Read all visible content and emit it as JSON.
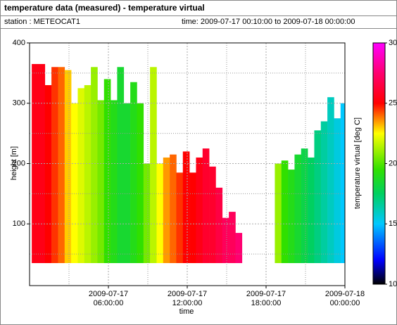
{
  "header": {
    "title": "temperature data (measured) - temperature virtual",
    "station": "station : METEOCAT1",
    "time": "time: 2009-07-17 00:10:00 to 2009-07-18 00:00:00"
  },
  "chart_data": {
    "type": "heatmap",
    "xlabel": "time",
    "ylabel": "height [m]",
    "colorbar_label": "temperature virtual [deg C]",
    "x": [
      "2009-07-17 00:10:00",
      "2009-07-17 00:40:00",
      "2009-07-17 01:10:00",
      "2009-07-17 01:40:00",
      "2009-07-17 02:10:00",
      "2009-07-17 02:40:00",
      "2009-07-17 03:10:00",
      "2009-07-17 03:40:00",
      "2009-07-17 04:10:00",
      "2009-07-17 04:40:00",
      "2009-07-17 05:10:00",
      "2009-07-17 05:40:00",
      "2009-07-17 06:10:00",
      "2009-07-17 06:40:00",
      "2009-07-17 07:10:00",
      "2009-07-17 07:40:00",
      "2009-07-17 08:10:00",
      "2009-07-17 08:40:00",
      "2009-07-17 09:10:00",
      "2009-07-17 09:40:00",
      "2009-07-17 10:10:00",
      "2009-07-17 10:40:00",
      "2009-07-17 11:10:00",
      "2009-07-17 11:40:00",
      "2009-07-17 12:10:00",
      "2009-07-17 12:40:00",
      "2009-07-17 13:10:00",
      "2009-07-17 13:40:00",
      "2009-07-17 14:10:00",
      "2009-07-17 14:40:00",
      "2009-07-17 15:10:00",
      "2009-07-17 15:40:00",
      "2009-07-17 18:40:00",
      "2009-07-17 19:10:00",
      "2009-07-17 19:40:00",
      "2009-07-17 20:10:00",
      "2009-07-17 20:40:00",
      "2009-07-17 21:10:00",
      "2009-07-17 21:40:00",
      "2009-07-17 22:10:00",
      "2009-07-17 22:40:00",
      "2009-07-17 23:10:00",
      "2009-07-17 23:40:00"
    ],
    "heights": [
      365,
      365,
      330,
      360,
      360,
      355,
      300,
      325,
      330,
      360,
      305,
      340,
      305,
      360,
      300,
      335,
      300,
      200,
      360,
      200,
      210,
      215,
      185,
      220,
      185,
      210,
      225,
      195,
      160,
      110,
      120,
      85,
      200,
      205,
      190,
      215,
      225,
      210,
      255,
      270,
      310,
      275,
      300
    ],
    "temperatures": [
      25.5,
      25.5,
      25,
      24.5,
      24,
      23,
      22.5,
      22,
      21.5,
      21,
      20.5,
      19.5,
      19,
      18.5,
      18.5,
      19,
      19.5,
      20.5,
      21.5,
      22.5,
      23.5,
      24,
      24.5,
      25,
      25,
      25.5,
      26,
      26,
      26.5,
      27,
      27,
      27.5,
      21,
      19.5,
      19,
      18.5,
      18,
      17.5,
      17,
      16.5,
      16,
      15.5,
      15
    ],
    "bottom": 35,
    "xlim": [
      "2009-07-17 00:00:00",
      "2009-07-18 00:00:00"
    ],
    "xticks": [
      "2009-07-17 06:00:00",
      "2009-07-17 12:00:00",
      "2009-07-17 18:00:00",
      "2009-07-18 00:00:00"
    ],
    "xminor": [
      "2009-07-17 03:00:00",
      "2009-07-17 09:00:00",
      "2009-07-17 15:00:00",
      "2009-07-17 21:00:00"
    ],
    "ylim": [
      0,
      400
    ],
    "yticks": [
      100,
      200,
      300,
      400
    ],
    "yminor": [
      50,
      150,
      250,
      350
    ],
    "clim": [
      10,
      30
    ],
    "cticks": [
      10,
      15,
      20,
      25,
      30
    ],
    "colorscale": [
      [
        10,
        "#000000"
      ],
      [
        12,
        "#0000ff"
      ],
      [
        15,
        "#00c8ff"
      ],
      [
        17.5,
        "#00d060"
      ],
      [
        19.5,
        "#30e000"
      ],
      [
        22.5,
        "#ffff00"
      ],
      [
        25,
        "#ff0000"
      ],
      [
        27.5,
        "#ff0070"
      ],
      [
        30,
        "#ff00ff"
      ]
    ],
    "grid": true
  }
}
